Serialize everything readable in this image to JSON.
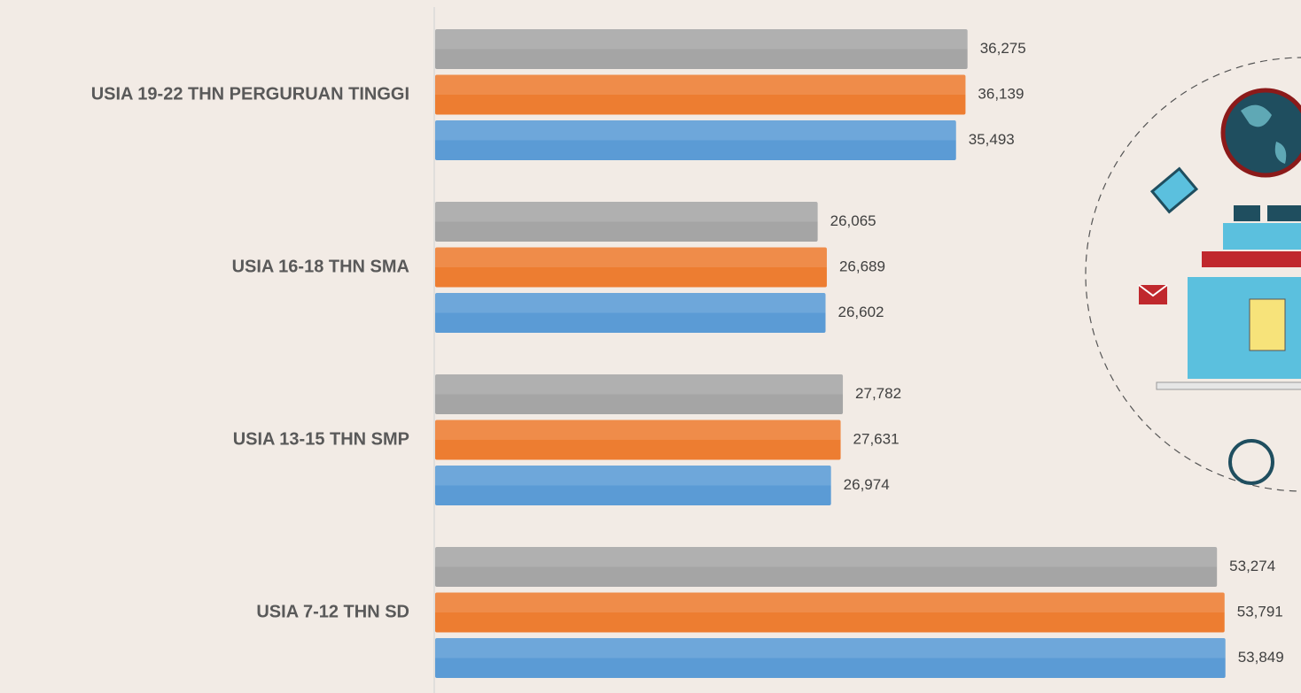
{
  "chart_data": {
    "type": "hbar",
    "categories": [
      "USIA 19-22 THN PERGURUAN TINGGI",
      "USIA 16-18 THN SMA",
      "USIA 13-15 THN SMP",
      "USIA 7-12 THN SD"
    ],
    "series": [
      {
        "color": "#a5a5a5",
        "values": [
          36275,
          26065,
          27782,
          53274
        ],
        "value_labels": [
          "36,275",
          "26,065",
          "27,782",
          "53,274"
        ]
      },
      {
        "color": "#ed7d31",
        "values": [
          36139,
          26689,
          27631,
          53791
        ],
        "value_labels": [
          "36,139",
          "26,689",
          "27,631",
          "53,791"
        ]
      },
      {
        "color": "#5b9bd5",
        "values": [
          35493,
          26602,
          26974,
          53849
        ],
        "value_labels": [
          "35,493",
          "26,602",
          "26,974",
          "53,849"
        ]
      }
    ],
    "xlim": [
      0,
      59000
    ]
  }
}
